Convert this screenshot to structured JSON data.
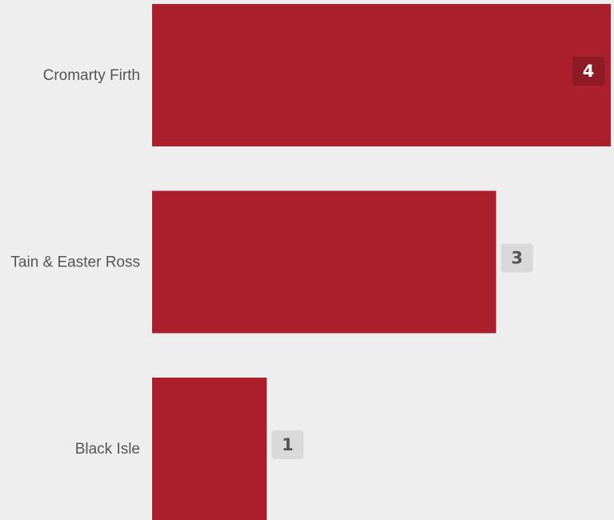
{
  "chart_data": {
    "type": "bar",
    "orientation": "horizontal",
    "categories": [
      "Cromarty Firth",
      "Tain & Easter Ross",
      "Black Isle"
    ],
    "values": [
      4,
      3,
      1
    ],
    "title": "",
    "xlabel": "",
    "ylabel": "",
    "grid": false,
    "legend": "none"
  },
  "colors": {
    "background": "#eeeeee",
    "bar": "#ab1e2c",
    "category_text": "#555555",
    "badge_inside_bg": "#8d1a25",
    "badge_inside_text": "#ffffff",
    "badge_outside_bg": "#d9d9d9",
    "badge_outside_text": "#555555"
  }
}
